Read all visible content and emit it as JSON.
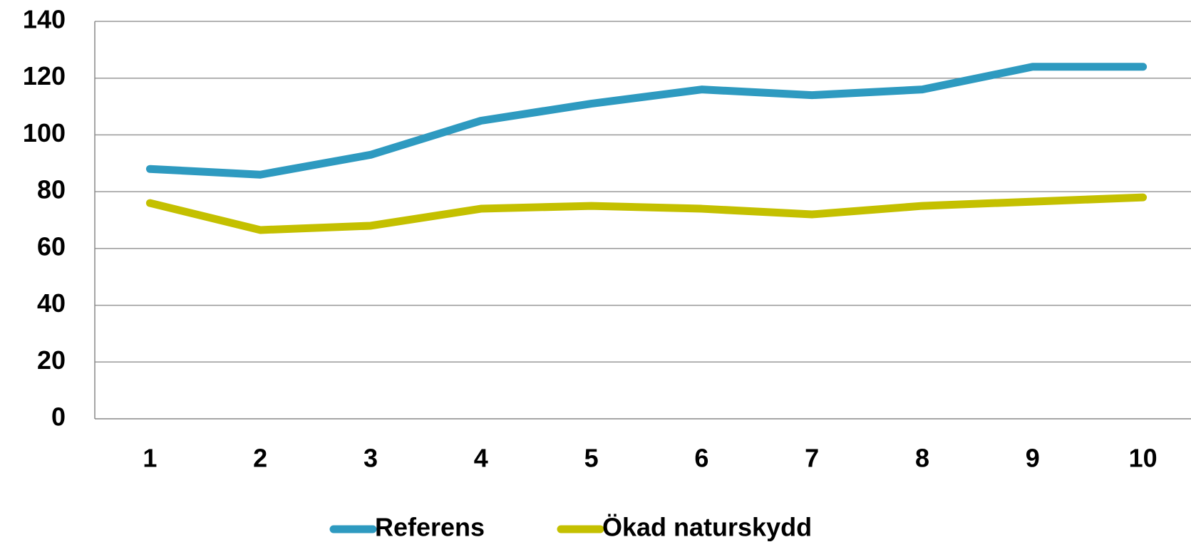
{
  "chart_data": {
    "type": "line",
    "categories": [
      "1",
      "2",
      "3",
      "4",
      "5",
      "6",
      "7",
      "8",
      "9",
      "10"
    ],
    "series": [
      {
        "name": "Referens",
        "color": "#2e9ac0",
        "values": [
          88,
          86,
          93,
          105,
          111,
          116,
          114,
          116,
          124,
          124
        ]
      },
      {
        "name": "Ökad naturskydd",
        "color": "#c4c000",
        "values": [
          76,
          66.5,
          68,
          74,
          75,
          74,
          72,
          75,
          76.5,
          78
        ]
      }
    ],
    "ylim": [
      0,
      140
    ],
    "yticks": [
      0,
      20,
      40,
      60,
      80,
      100,
      120,
      140
    ],
    "grid": true,
    "legend": "bottom"
  }
}
